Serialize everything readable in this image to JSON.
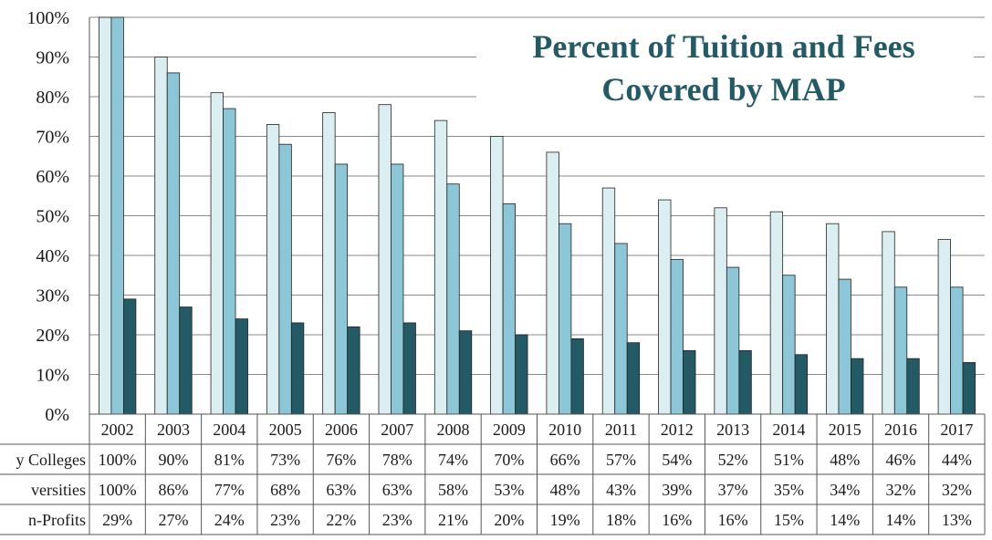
{
  "chart_data": {
    "type": "bar",
    "title_lines": [
      "Percent of Tuition and Fees",
      "Covered by MAP"
    ],
    "categories": [
      "2002",
      "2003",
      "2004",
      "2005",
      "2006",
      "2007",
      "2008",
      "2009",
      "2010",
      "2011",
      "2012",
      "2013",
      "2014",
      "2015",
      "2016",
      "2017"
    ],
    "ylim": [
      0,
      100
    ],
    "y_ticks": [
      "0%",
      "10%",
      "20%",
      "30%",
      "40%",
      "50%",
      "60%",
      "70%",
      "80%",
      "90%",
      "100%"
    ],
    "grid": true,
    "legend": "data-table",
    "series": [
      {
        "name": "y Colleges",
        "color": "#dbeef2",
        "values": [
          100,
          90,
          81,
          73,
          76,
          78,
          74,
          70,
          66,
          57,
          54,
          52,
          51,
          48,
          46,
          44
        ],
        "labels": [
          "100%",
          "90%",
          "81%",
          "73%",
          "76%",
          "78%",
          "74%",
          "70%",
          "66%",
          "57%",
          "54%",
          "52%",
          "51%",
          "48%",
          "46%",
          "44%"
        ]
      },
      {
        "name": "versities",
        "color": "#8dc6d6",
        "values": [
          100,
          86,
          77,
          68,
          63,
          63,
          58,
          53,
          48,
          43,
          39,
          37,
          35,
          34,
          32,
          32
        ],
        "labels": [
          "100%",
          "86%",
          "77%",
          "68%",
          "63%",
          "63%",
          "58%",
          "53%",
          "48%",
          "43%",
          "39%",
          "37%",
          "35%",
          "34%",
          "32%",
          "32%"
        ]
      },
      {
        "name": "n-Profits",
        "color": "#245a66",
        "values": [
          29,
          27,
          24,
          23,
          22,
          23,
          21,
          20,
          19,
          18,
          16,
          16,
          15,
          14,
          14,
          13
        ],
        "labels": [
          "29%",
          "27%",
          "24%",
          "23%",
          "22%",
          "23%",
          "21%",
          "20%",
          "19%",
          "18%",
          "16%",
          "16%",
          "15%",
          "14%",
          "14%",
          "13%"
        ]
      }
    ]
  }
}
